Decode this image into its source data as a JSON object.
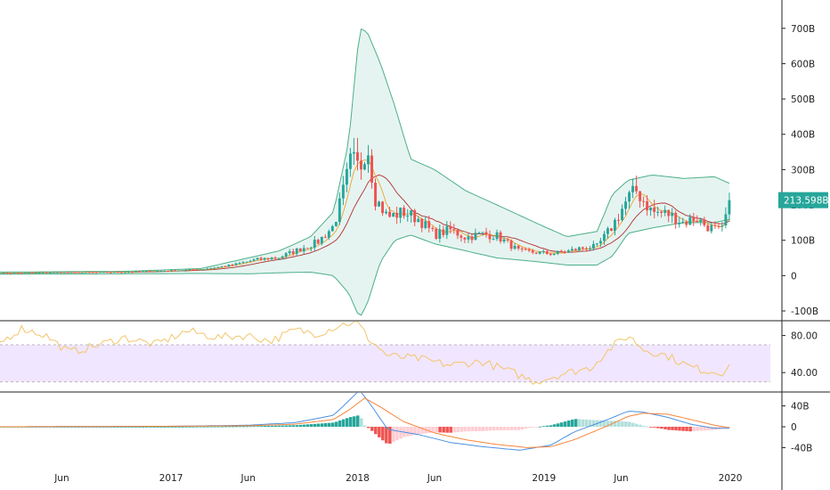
{
  "colors": {
    "up": "#26a69a",
    "down": "#ef5350",
    "bb_line": "#4caf87",
    "bb_fill": "#e6f4f1",
    "ma_fast": "#f0a030",
    "ma_slow": "#b03030",
    "rsi_line": "#f2c56b",
    "rsi_band": "#f1e6ff",
    "macd_line": "#4a90e2",
    "signal_line": "#f7853b",
    "hist_up_strong": "#26a69a",
    "hist_up_weak": "#b2dfdb",
    "hist_down_strong": "#ef5350",
    "hist_down_weak": "#ffcdd2",
    "price_tag": "#26a69a"
  },
  "chart_data": [
    {
      "type": "candlestick",
      "panel": "price",
      "unit": "B",
      "ylim": [
        -100,
        760
      ],
      "y_ticks": [
        "-100B",
        "0",
        "100B",
        "200B",
        "300B",
        "400B",
        "500B",
        "600B",
        "700B"
      ],
      "last_value_label": "213.598B",
      "x_ticks": [
        "Jun",
        "2017",
        "Jun",
        "2018",
        "Jun",
        "2019",
        "Jun",
        "2020"
      ],
      "anchors": {
        "dates": [
          "2016-02-01",
          "2016-06-01",
          "2016-10-01",
          "2017-01-01",
          "2017-03-01",
          "2017-05-01",
          "2017-06-15",
          "2017-08-01",
          "2017-09-01",
          "2017-10-15",
          "2017-11-15",
          "2017-12-01",
          "2017-12-20",
          "2018-01-05",
          "2018-01-20",
          "2018-02-05",
          "2018-03-01",
          "2018-04-01",
          "2018-05-01",
          "2018-06-01",
          "2018-07-01",
          "2018-08-01",
          "2018-09-01",
          "2018-10-01",
          "2018-11-15",
          "2018-12-15",
          "2019-01-15",
          "2019-02-15",
          "2019-03-15",
          "2019-04-15",
          "2019-05-15",
          "2019-06-15",
          "2019-07-01",
          "2019-08-01",
          "2019-09-01",
          "2019-10-01",
          "2019-10-25",
          "2019-11-15",
          "2019-12-15",
          "2020-01-01"
        ],
        "close": [
          7,
          9,
          10,
          14,
          18,
          30,
          45,
          52,
          70,
          95,
          140,
          220,
          330,
          300,
          380,
          220,
          165,
          180,
          160,
          115,
          130,
          108,
          118,
          112,
          68,
          66,
          62,
          68,
          78,
          82,
          140,
          220,
          240,
          180,
          175,
          150,
          165,
          140,
          125,
          214
        ]
      },
      "bb_anchors": {
        "dates": [
          "2016-02-01",
          "2016-10-01",
          "2017-03-01",
          "2017-06-01",
          "2017-08-01",
          "2017-10-01",
          "2017-11-15",
          "2017-12-15",
          "2018-01-05",
          "2018-01-20",
          "2018-02-15",
          "2018-03-15",
          "2018-04-15",
          "2018-06-01",
          "2018-08-01",
          "2018-10-01",
          "2018-12-15",
          "2019-02-15",
          "2019-04-15",
          "2019-05-15",
          "2019-06-15",
          "2019-08-01",
          "2019-10-01",
          "2019-12-01",
          "2020-01-01"
        ],
        "upper": [
          10,
          12,
          20,
          50,
          70,
          110,
          180,
          380,
          700,
          690,
          600,
          480,
          330,
          300,
          240,
          200,
          150,
          110,
          125,
          230,
          270,
          285,
          275,
          280,
          260
        ],
        "lower": [
          4,
          5,
          6,
          5,
          8,
          10,
          0,
          -50,
          -120,
          -80,
          40,
          100,
          115,
          90,
          70,
          50,
          40,
          30,
          30,
          55,
          120,
          135,
          150,
          150,
          160
        ]
      }
    },
    {
      "type": "line",
      "panel": "rsi",
      "ylim": [
        20,
        95
      ],
      "y_ticks": [
        "40.00",
        "80.00"
      ],
      "band": [
        30,
        70
      ],
      "anchors": {
        "dates": [
          "2016-02-01",
          "2016-03-15",
          "2016-05-01",
          "2016-06-15",
          "2016-08-01",
          "2016-10-01",
          "2016-12-01",
          "2017-02-01",
          "2017-04-01",
          "2017-06-01",
          "2017-07-15",
          "2017-09-01",
          "2017-10-15",
          "2017-12-01",
          "2018-01-01",
          "2018-01-20",
          "2018-03-01",
          "2018-05-01",
          "2018-07-01",
          "2018-09-01",
          "2018-11-01",
          "2018-12-15",
          "2019-02-01",
          "2019-04-01",
          "2019-05-15",
          "2019-06-15",
          "2019-07-15",
          "2019-09-01",
          "2019-10-15",
          "2019-11-15",
          "2019-12-15",
          "2020-01-01"
        ],
        "values": [
          72,
          88,
          80,
          62,
          68,
          78,
          70,
          85,
          78,
          80,
          74,
          86,
          82,
          92,
          95,
          78,
          58,
          55,
          48,
          52,
          40,
          30,
          38,
          45,
          68,
          80,
          65,
          58,
          46,
          42,
          40,
          50
        ]
      }
    },
    {
      "type": "macd",
      "panel": "macd",
      "unit": "B",
      "ylim": [
        -70,
        65
      ],
      "y_ticks": [
        "-40B",
        "0",
        "40B"
      ],
      "macd_anchors": {
        "dates": [
          "2016-02-01",
          "2017-01-01",
          "2017-06-01",
          "2017-09-01",
          "2017-11-15",
          "2017-12-15",
          "2018-01-05",
          "2018-01-25",
          "2018-03-01",
          "2018-05-01",
          "2018-07-01",
          "2018-09-01",
          "2018-11-15",
          "2019-01-15",
          "2019-03-01",
          "2019-05-01",
          "2019-06-15",
          "2019-07-15",
          "2019-09-01",
          "2019-10-15",
          "2019-12-01",
          "2020-01-01"
        ],
        "values": [
          0,
          1,
          3,
          8,
          22,
          50,
          70,
          45,
          -5,
          -15,
          -30,
          -38,
          -45,
          -35,
          -10,
          12,
          30,
          28,
          18,
          5,
          -3,
          -3
        ]
      },
      "signal_anchors": {
        "dates": [
          "2016-02-01",
          "2017-01-01",
          "2017-06-01",
          "2017-09-01",
          "2017-11-15",
          "2017-12-15",
          "2018-01-15",
          "2018-02-15",
          "2018-04-01",
          "2018-06-01",
          "2018-08-01",
          "2018-10-01",
          "2018-12-01",
          "2019-01-15",
          "2019-03-01",
          "2019-05-01",
          "2019-06-15",
          "2019-07-15",
          "2019-09-01",
          "2019-10-15",
          "2019-12-01",
          "2020-01-01"
        ],
        "values": [
          0,
          1,
          2,
          5,
          14,
          32,
          55,
          38,
          10,
          -12,
          -25,
          -34,
          -40,
          -38,
          -25,
          0,
          20,
          26,
          24,
          14,
          3,
          -2
        ]
      }
    }
  ]
}
